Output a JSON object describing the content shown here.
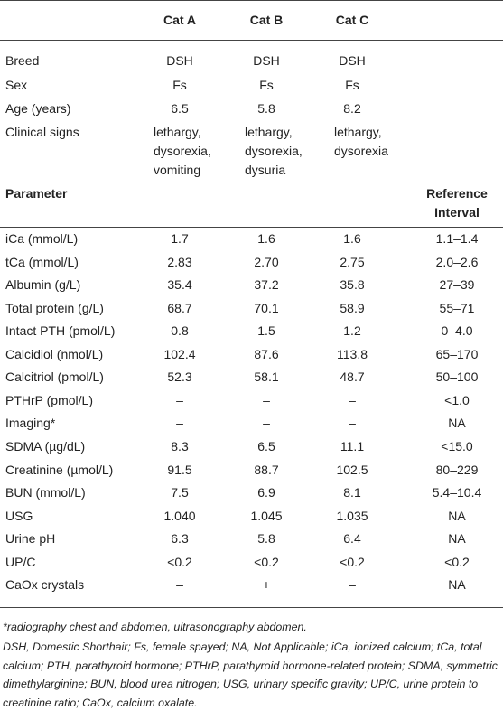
{
  "table": {
    "header": [
      "Cat A",
      "Cat B",
      "Cat C"
    ],
    "patient_rows": [
      [
        "Breed",
        "DSH",
        "DSH",
        "DSH"
      ],
      [
        "Sex",
        "Fs",
        "Fs",
        "Fs"
      ],
      [
        "Age (years)",
        "6.5",
        "5.8",
        "8.2"
      ],
      [
        "Clinical signs",
        "lethargy, dysorexia, vomiting",
        "lethargy, dysorexia, dysuria",
        "lethargy, dysorexia"
      ]
    ],
    "parameter_header": [
      "Parameter",
      "Reference Interval"
    ],
    "parameter_rows": [
      [
        "iCa (mmol/L)",
        "1.7",
        "1.6",
        "1.6",
        "1.1–1.4"
      ],
      [
        "tCa (mmol/L)",
        "2.83",
        "2.70",
        "2.75",
        "2.0–2.6"
      ],
      [
        "Albumin (g/L)",
        "35.4",
        "37.2",
        "35.8",
        "27–39"
      ],
      [
        "Total protein (g/L)",
        "68.7",
        "70.1",
        "58.9",
        "55–71"
      ],
      [
        "Intact PTH (pmol/L)",
        "0.8",
        "1.5",
        "1.2",
        "0–4.0"
      ],
      [
        "Calcidiol (nmol/L)",
        "102.4",
        "87.6",
        "113.8",
        "65–170"
      ],
      [
        "Calcitriol (pmol/L)",
        "52.3",
        "58.1",
        "48.7",
        "50–100"
      ],
      [
        "PTHrP (pmol/L)",
        "–",
        "–",
        "–",
        "<1.0"
      ],
      [
        "Imaging*",
        "–",
        "–",
        "–",
        "NA"
      ],
      [
        "SDMA (µg/dL)",
        "8.3",
        "6.5",
        "11.1",
        "<15.0"
      ],
      [
        "Creatinine (µmol/L)",
        "91.5",
        "88.7",
        "102.5",
        "80–229"
      ],
      [
        "BUN (mmol/L)",
        "7.5",
        "6.9",
        "8.1",
        "5.4–10.4"
      ],
      [
        "USG",
        "1.040",
        "1.045",
        "1.035",
        "NA"
      ],
      [
        "Urine pH",
        "6.3",
        "5.8",
        "6.4",
        "NA"
      ],
      [
        "UP/C",
        "<0.2",
        "<0.2",
        "<0.2",
        "<0.2"
      ],
      [
        "CaOx crystals",
        "–",
        "+",
        "–",
        "NA"
      ]
    ]
  },
  "footnotes": [
    "*radiography chest and abdomen, ultrasonography abdomen.",
    "DSH, Domestic Shorthair; Fs, female spayed; NA, Not Applicable; iCa, ionized calcium; tCa, total calcium; PTH, parathyroid hormone; PTHrP, parathyroid hormone-related protein; SDMA, symmetric dimethylarginine; BUN, blood urea nitrogen; USG, urinary specific gravity; UP/C, urine protein to creatinine ratio; CaOx, calcium oxalate."
  ]
}
